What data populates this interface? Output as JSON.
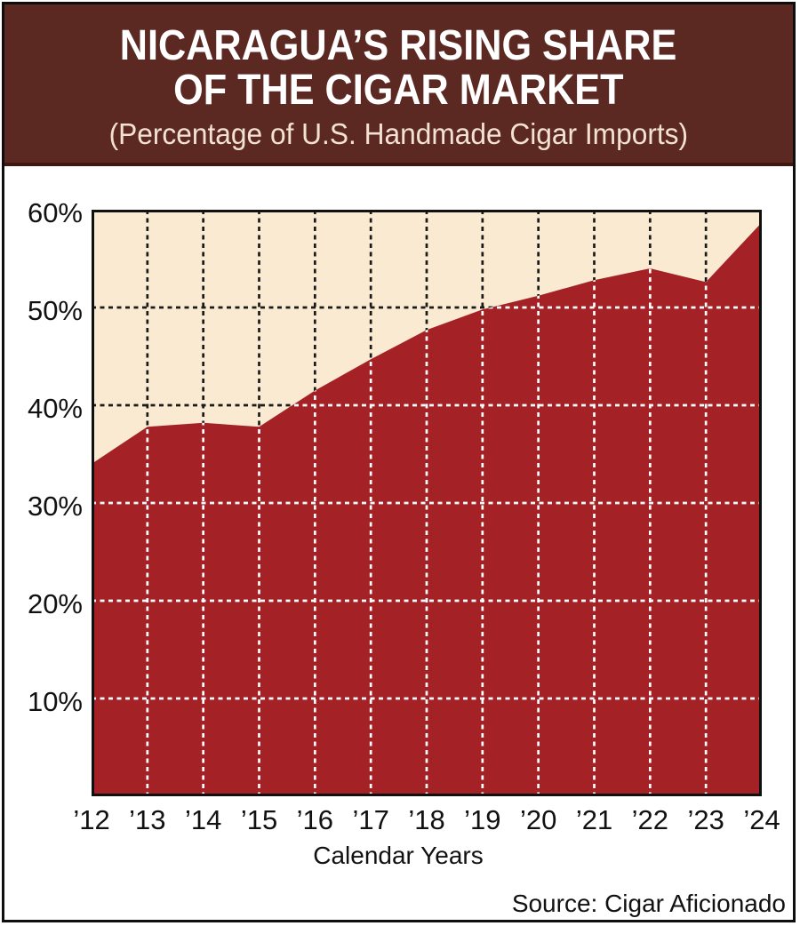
{
  "header": {
    "title_line1": "NICARAGUA’S RISING SHARE",
    "title_line2": "OF THE CIGAR MARKET",
    "subtitle": "(Percentage of U.S. Handmade Cigar Imports)"
  },
  "footer": {
    "source": "Source: Cigar Aficionado"
  },
  "colors": {
    "header_bg": "#5C2822",
    "header_edge": "#40160F",
    "title_text": "#FFFFFF",
    "subtitle_text": "#F3E2D2",
    "plot_bg": "#FAEAD1",
    "area_fill": "#A42125",
    "grid_on_bg": "#1A1A1A",
    "grid_on_area": "#FFFFFF",
    "plot_border": "#101010",
    "axis_text": "#111111"
  },
  "chart_data": {
    "type": "area",
    "title": "Nicaragua’s Rising Share of the Cigar Market",
    "subtitle": "Percentage of U.S. Handmade Cigar Imports",
    "categories": [
      "’12",
      "’13",
      "’14",
      "’15",
      "’16",
      "’17",
      "’18",
      "’19",
      "’20",
      "’21",
      "’22",
      "’23",
      "’24"
    ],
    "values": [
      34.0,
      37.8,
      38.2,
      37.8,
      41.5,
      44.7,
      47.7,
      49.8,
      51.2,
      52.8,
      54.0,
      52.6,
      58.7
    ],
    "xlabel": "Calendar Years",
    "ylabel": "",
    "ylim": [
      0,
      60
    ],
    "yticks": [
      10,
      20,
      30,
      40,
      50,
      60
    ],
    "ytick_suffix": "%",
    "grid": "dashed",
    "legend_position": "none"
  }
}
